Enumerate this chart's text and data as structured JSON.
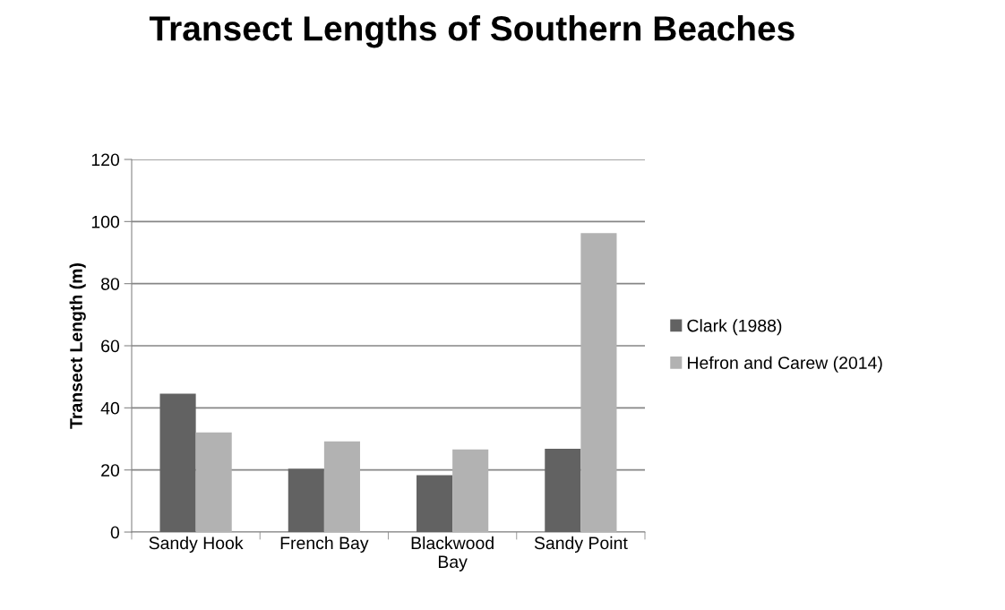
{
  "chart_data": {
    "type": "bar",
    "title": "Transect Lengths of Southern Beaches",
    "ylabel": "Transect Length (m)",
    "categories": [
      "Sandy Hook",
      "French Bay",
      "Blackwood Bay",
      "Sandy Point"
    ],
    "series": [
      {
        "name": "Clark (1988)",
        "color": "#626262",
        "values": [
          44.6,
          20.4,
          18.3,
          26.8
        ]
      },
      {
        "name": "Hefron and Carew (2014)",
        "color": "#b2b2b2",
        "values": [
          32.1,
          29.2,
          26.6,
          96.3
        ]
      }
    ],
    "ylim": [
      0,
      120
    ],
    "yticks": [
      0,
      20,
      40,
      60,
      80,
      100,
      120
    ],
    "grid": "y",
    "legend": "right"
  }
}
